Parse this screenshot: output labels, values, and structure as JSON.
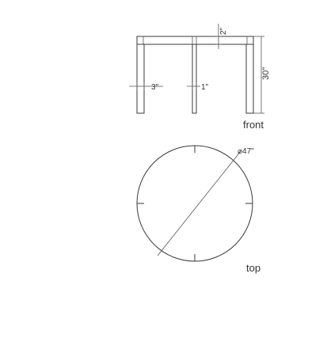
{
  "labels": {
    "height_dim": "30\"",
    "top_thickness_dim": "2\"",
    "leg_width_dim": "3\"",
    "center_leg_dim": "1\"",
    "front_view": "front",
    "diameter_dim": "⌀47\"",
    "top_view": "top"
  },
  "colors": {
    "line": "#3a3a3a",
    "background": "#ffffff"
  }
}
